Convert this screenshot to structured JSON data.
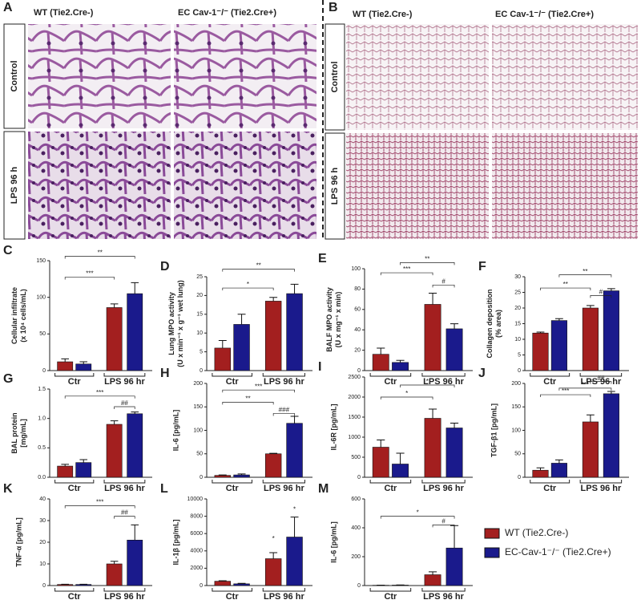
{
  "histology": {
    "A": {
      "letter": "A",
      "columns": [
        "WT (Tie2.Cre-)",
        "EC Cav-1⁻/⁻ (Tie2.Cre+)"
      ],
      "rows": [
        "Control",
        "LPS 96 h"
      ]
    },
    "B": {
      "letter": "B",
      "columns": [
        "WT (Tie2.Cre-)",
        "EC Cav-1⁻/⁻ (Tie2.Cre+)"
      ],
      "rows": [
        "Control",
        "LPS 96 h"
      ]
    }
  },
  "legend": [
    {
      "name": "WT (Tie2.Cre-)",
      "color": "#a31f1f"
    },
    {
      "name": "EC-Cav-1⁻/⁻ (Tie2.Cre+)",
      "color": "#1a1a8c"
    }
  ],
  "chart_data": [
    {
      "type": "bar",
      "panel": "C",
      "ylabel": [
        "Cellular infiltrate",
        "(x 10⁴ cells/mL)"
      ],
      "categories": [
        "Ctr",
        "LPS 96 hr"
      ],
      "series": [
        {
          "color": "#a31f1f",
          "values": [
            12,
            86
          ],
          "errors": [
            4,
            5
          ]
        },
        {
          "color": "#1a1a8c",
          "values": [
            9,
            105
          ],
          "errors": [
            3,
            15
          ]
        }
      ],
      "ylim": [
        0,
        150
      ],
      "yticks": [
        0,
        50,
        100,
        150
      ],
      "annotations": [
        "**",
        "***"
      ]
    },
    {
      "type": "bar",
      "panel": "D",
      "ylabel": [
        "Lung MPO activity",
        "(U x min⁻¹ x g⁻¹ wet lung)"
      ],
      "categories": [
        "Ctr",
        "LPS 96 hr"
      ],
      "series": [
        {
          "color": "#a31f1f",
          "values": [
            6,
            18.5
          ],
          "errors": [
            2,
            1
          ]
        },
        {
          "color": "#1a1a8c",
          "values": [
            12.3,
            20.5
          ],
          "errors": [
            2.7,
            2.5
          ]
        }
      ],
      "ylim": [
        0,
        25
      ],
      "yticks": [
        0,
        5,
        10,
        15,
        20,
        25
      ],
      "annotations": [
        "**",
        "*"
      ]
    },
    {
      "type": "bar",
      "panel": "E",
      "ylabel": [
        "BALF MPO activity",
        "(U x mg⁻¹ x min)"
      ],
      "categories": [
        "Ctr",
        "LPS 96 hr"
      ],
      "series": [
        {
          "color": "#a31f1f",
          "values": [
            16,
            65
          ],
          "errors": [
            6,
            11
          ]
        },
        {
          "color": "#1a1a8c",
          "values": [
            8,
            41
          ],
          "errors": [
            2,
            5
          ]
        }
      ],
      "ylim": [
        0,
        100
      ],
      "yticks": [
        0,
        20,
        40,
        60,
        80,
        100
      ],
      "annotations": [
        "***",
        "**",
        "#"
      ]
    },
    {
      "type": "bar",
      "panel": "F",
      "ylabel": [
        "Collagen deposition",
        "(% area)"
      ],
      "categories": [
        "Ctr",
        "LPS 96 hr"
      ],
      "series": [
        {
          "color": "#a31f1f",
          "values": [
            12,
            20
          ],
          "errors": [
            0.3,
            0.8
          ]
        },
        {
          "color": "#1a1a8c",
          "values": [
            16,
            25.5
          ],
          "errors": [
            0.6,
            0.7
          ]
        }
      ],
      "ylim": [
        0,
        30
      ],
      "yticks": [
        0,
        5,
        10,
        15,
        20,
        25,
        30
      ],
      "annotations": [
        "**",
        "**",
        "#"
      ]
    },
    {
      "type": "bar",
      "panel": "G",
      "ylabel": [
        "BAL protein",
        "[mg/mL]"
      ],
      "categories": [
        "Ctr",
        "LPS 96 hr"
      ],
      "series": [
        {
          "color": "#a31f1f",
          "values": [
            0.19,
            0.9
          ],
          "errors": [
            0.03,
            0.06
          ]
        },
        {
          "color": "#1a1a8c",
          "values": [
            0.25,
            1.08
          ],
          "errors": [
            0.05,
            0.03
          ]
        }
      ],
      "ylim": [
        0,
        1.5
      ],
      "yticks": [
        {
          "value": 0,
          "label": "0.0"
        },
        0.5,
        {
          "value": 1,
          "label": "1.0"
        },
        1.5
      ],
      "annotations": [
        "***",
        "##"
      ]
    },
    {
      "type": "bar",
      "panel": "H",
      "ylabel": [
        "IL-6 [pg/mL]"
      ],
      "categories": [
        "Ctr",
        "LPS 96 hr"
      ],
      "series": [
        {
          "color": "#a31f1f",
          "values": [
            4,
            50
          ],
          "errors": [
            1,
            1
          ]
        },
        {
          "color": "#1a1a8c",
          "values": [
            5,
            115
          ],
          "errors": [
            2,
            15
          ]
        }
      ],
      "ylim": [
        0,
        200
      ],
      "yticks": [
        0,
        50,
        100,
        150,
        200
      ],
      "annotations": [
        "**",
        "***",
        "###"
      ]
    },
    {
      "type": "bar",
      "panel": "I",
      "ylabel": [
        "IL-6R [pg/mL]"
      ],
      "categories": [
        "Ctr",
        "LPS 96 hr"
      ],
      "series": [
        {
          "color": "#a31f1f",
          "values": [
            750,
            1470
          ],
          "errors": [
            180,
            230
          ]
        },
        {
          "color": "#1a1a8c",
          "values": [
            330,
            1230
          ],
          "errors": [
            270,
            120
          ]
        }
      ],
      "ylim": [
        0,
        2500
      ],
      "yticks": [
        0,
        500,
        1000,
        1500,
        2000,
        2500
      ],
      "annotations": [
        "*",
        "*"
      ]
    },
    {
      "type": "bar",
      "panel": "J",
      "ylabel": [
        "TGF-β1 [pg/mL]"
      ],
      "categories": [
        "Ctr",
        "LPS 96 hr"
      ],
      "series": [
        {
          "color": "#a31f1f",
          "values": [
            15,
            118
          ],
          "errors": [
            5,
            15
          ]
        },
        {
          "color": "#1a1a8c",
          "values": [
            30,
            178
          ],
          "errors": [
            7,
            5
          ]
        }
      ],
      "ylim": [
        0,
        200
      ],
      "yticks": [
        0,
        50,
        100,
        150,
        200
      ],
      "annotations": [
        "***",
        "***",
        "##"
      ]
    },
    {
      "type": "bar",
      "panel": "K",
      "ylabel": [
        "TNF-α [pg/mL]"
      ],
      "categories": [
        "Ctr",
        "LPS 96 hr"
      ],
      "series": [
        {
          "color": "#a31f1f",
          "values": [
            0.5,
            10
          ],
          "errors": [
            0.1,
            1.2
          ]
        },
        {
          "color": "#1a1a8c",
          "values": [
            0.5,
            21
          ],
          "errors": [
            0.1,
            7
          ]
        }
      ],
      "ylim": [
        0,
        40
      ],
      "yticks": [
        0,
        10,
        20,
        30,
        40
      ],
      "annotations": [
        "***",
        "##"
      ]
    },
    {
      "type": "bar",
      "panel": "L",
      "ylabel": [
        "IL-1β [pg/mL]"
      ],
      "categories": [
        "Ctr",
        "LPS 96 hr"
      ],
      "series": [
        {
          "color": "#a31f1f",
          "values": [
            500,
            3100
          ],
          "errors": [
            50,
            700
          ]
        },
        {
          "color": "#1a1a8c",
          "values": [
            200,
            5600
          ],
          "errors": [
            50,
            2300
          ]
        }
      ],
      "ylim": [
        0,
        10000
      ],
      "yticks": [
        0,
        2000,
        4000,
        6000,
        8000,
        10000
      ],
      "annotations": [
        "*",
        "*"
      ]
    },
    {
      "type": "bar",
      "panel": "M",
      "ylabel": [
        "IL-6 [pg/mL]"
      ],
      "categories": [
        "Ctr",
        "LPS 96 hr"
      ],
      "series": [
        {
          "color": "#a31f1f",
          "values": [
            2,
            75
          ],
          "errors": [
            1,
            20
          ]
        },
        {
          "color": "#1a1a8c",
          "values": [
            3,
            260
          ],
          "errors": [
            1,
            155
          ]
        }
      ],
      "ylim": [
        0,
        600
      ],
      "yticks": [
        0,
        200,
        400,
        600
      ],
      "annotations": [
        "*",
        "#"
      ]
    }
  ]
}
